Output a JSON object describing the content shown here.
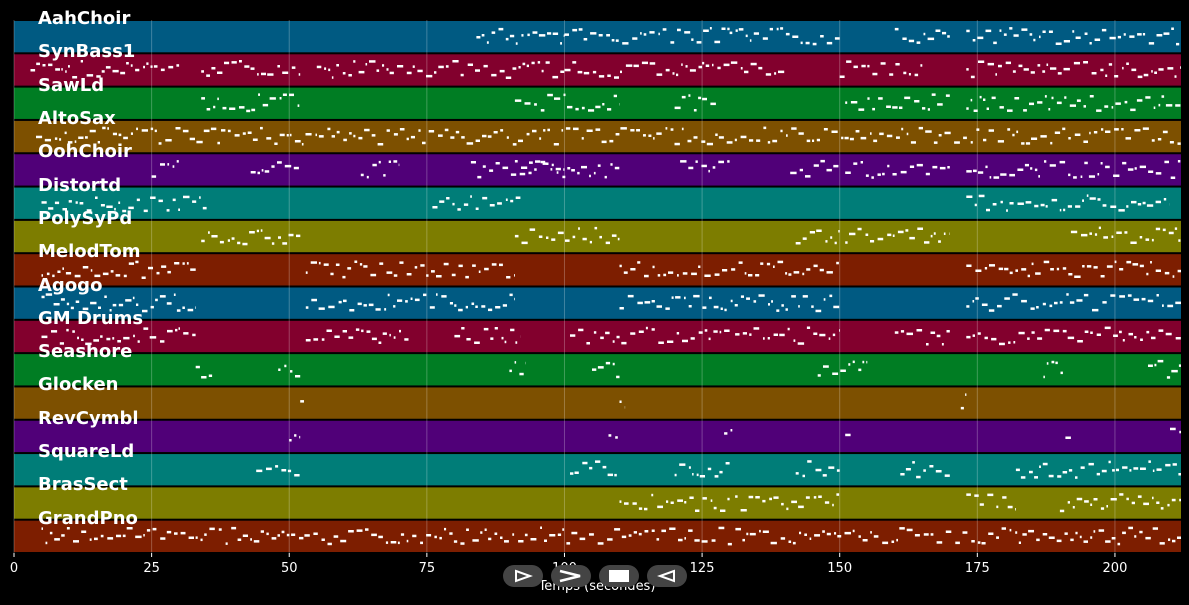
{
  "chart_data": {
    "type": "piano-roll",
    "xlabel": "Temps (secondes)",
    "xlim": [
      0,
      212
    ],
    "xticks": [
      0,
      25,
      50,
      75,
      100,
      125,
      150,
      175,
      200
    ],
    "tracks": [
      {
        "name": "AahChoir",
        "color": "#005a82",
        "segments": [
          [
            84,
            100
          ],
          [
            100,
            130
          ],
          [
            130,
            150
          ],
          [
            160,
            170
          ],
          [
            173,
            212
          ]
        ]
      },
      {
        "name": "SynBass1",
        "color": "#82002d",
        "segments": [
          [
            3,
            30
          ],
          [
            34,
            52
          ],
          [
            55,
            100
          ],
          [
            100,
            125
          ],
          [
            125,
            140
          ],
          [
            150,
            165
          ],
          [
            173,
            212
          ]
        ]
      },
      {
        "name": "SawLd",
        "color": "#007d23",
        "segments": [
          [
            34,
            52
          ],
          [
            91,
            110
          ],
          [
            120,
            128
          ],
          [
            151,
            170
          ],
          [
            173,
            212
          ]
        ]
      },
      {
        "name": "AltoSax",
        "color": "#7d5000",
        "segments": [
          [
            4,
            212
          ]
        ]
      },
      {
        "name": "OohChoir",
        "color": "#500078",
        "segments": [
          [
            25,
            30
          ],
          [
            43,
            52
          ],
          [
            63,
            70
          ],
          [
            83,
            100
          ],
          [
            91,
            110
          ],
          [
            121,
            130
          ],
          [
            141,
            150
          ],
          [
            151,
            170
          ],
          [
            173,
            212
          ]
        ]
      },
      {
        "name": "Distortd",
        "color": "#007d78",
        "segments": [
          [
            5,
            35
          ],
          [
            76,
            92
          ],
          [
            173,
            210
          ]
        ]
      },
      {
        "name": "PolySyPd",
        "color": "#7d7d00",
        "segments": [
          [
            34,
            52
          ],
          [
            91,
            110
          ],
          [
            142,
            150
          ],
          [
            151,
            170
          ],
          [
            192,
            212
          ]
        ]
      },
      {
        "name": "MelodTom",
        "color": "#7d1e00",
        "segments": [
          [
            5,
            33
          ],
          [
            53,
            91
          ],
          [
            110,
            150
          ],
          [
            173,
            212
          ]
        ]
      },
      {
        "name": "Agogo",
        "color": "#005a82",
        "segments": [
          [
            5,
            33
          ],
          [
            53,
            91
          ],
          [
            110,
            150
          ],
          [
            173,
            212
          ]
        ]
      },
      {
        "name": "GM Drums",
        "color": "#82002d",
        "segments": [
          [
            5,
            33
          ],
          [
            53,
            72
          ],
          [
            80,
            92
          ],
          [
            101,
            130
          ],
          [
            131,
            150
          ],
          [
            160,
            170
          ],
          [
            173,
            212
          ]
        ]
      },
      {
        "name": "Seashore",
        "color": "#007d23",
        "segments": [
          [
            33,
            36
          ],
          [
            48,
            52
          ],
          [
            90,
            93
          ],
          [
            105,
            110
          ],
          [
            146,
            155
          ],
          [
            187,
            191
          ],
          [
            206,
            212
          ]
        ]
      },
      {
        "name": "Glocken",
        "color": "#7d5000",
        "segments": [
          [
            52,
            53
          ],
          [
            110,
            111
          ],
          [
            172,
            173
          ]
        ]
      },
      {
        "name": "RevCymbl",
        "color": "#500078",
        "segments": [
          [
            50,
            52
          ],
          [
            108,
            110
          ],
          [
            129,
            131
          ],
          [
            151,
            152
          ],
          [
            191,
            192
          ],
          [
            210,
            212
          ]
        ]
      },
      {
        "name": "SquareLd",
        "color": "#007d78",
        "segments": [
          [
            44,
            52
          ],
          [
            101,
            110
          ],
          [
            120,
            130
          ],
          [
            142,
            150
          ],
          [
            161,
            170
          ],
          [
            182,
            212
          ]
        ]
      },
      {
        "name": "BrasSect",
        "color": "#7d7d00",
        "segments": [
          [
            110,
            130
          ],
          [
            131,
            150
          ],
          [
            173,
            182
          ],
          [
            190,
            212
          ]
        ]
      },
      {
        "name": "GrandPno",
        "color": "#7d1e00",
        "segments": [
          [
            5,
            212
          ]
        ]
      }
    ]
  },
  "controls": {
    "play_icon": "play-outline-icon",
    "forward_icon": "fast-forward-icon",
    "stop_icon": "stop-icon",
    "back_icon": "rewind-icon"
  }
}
